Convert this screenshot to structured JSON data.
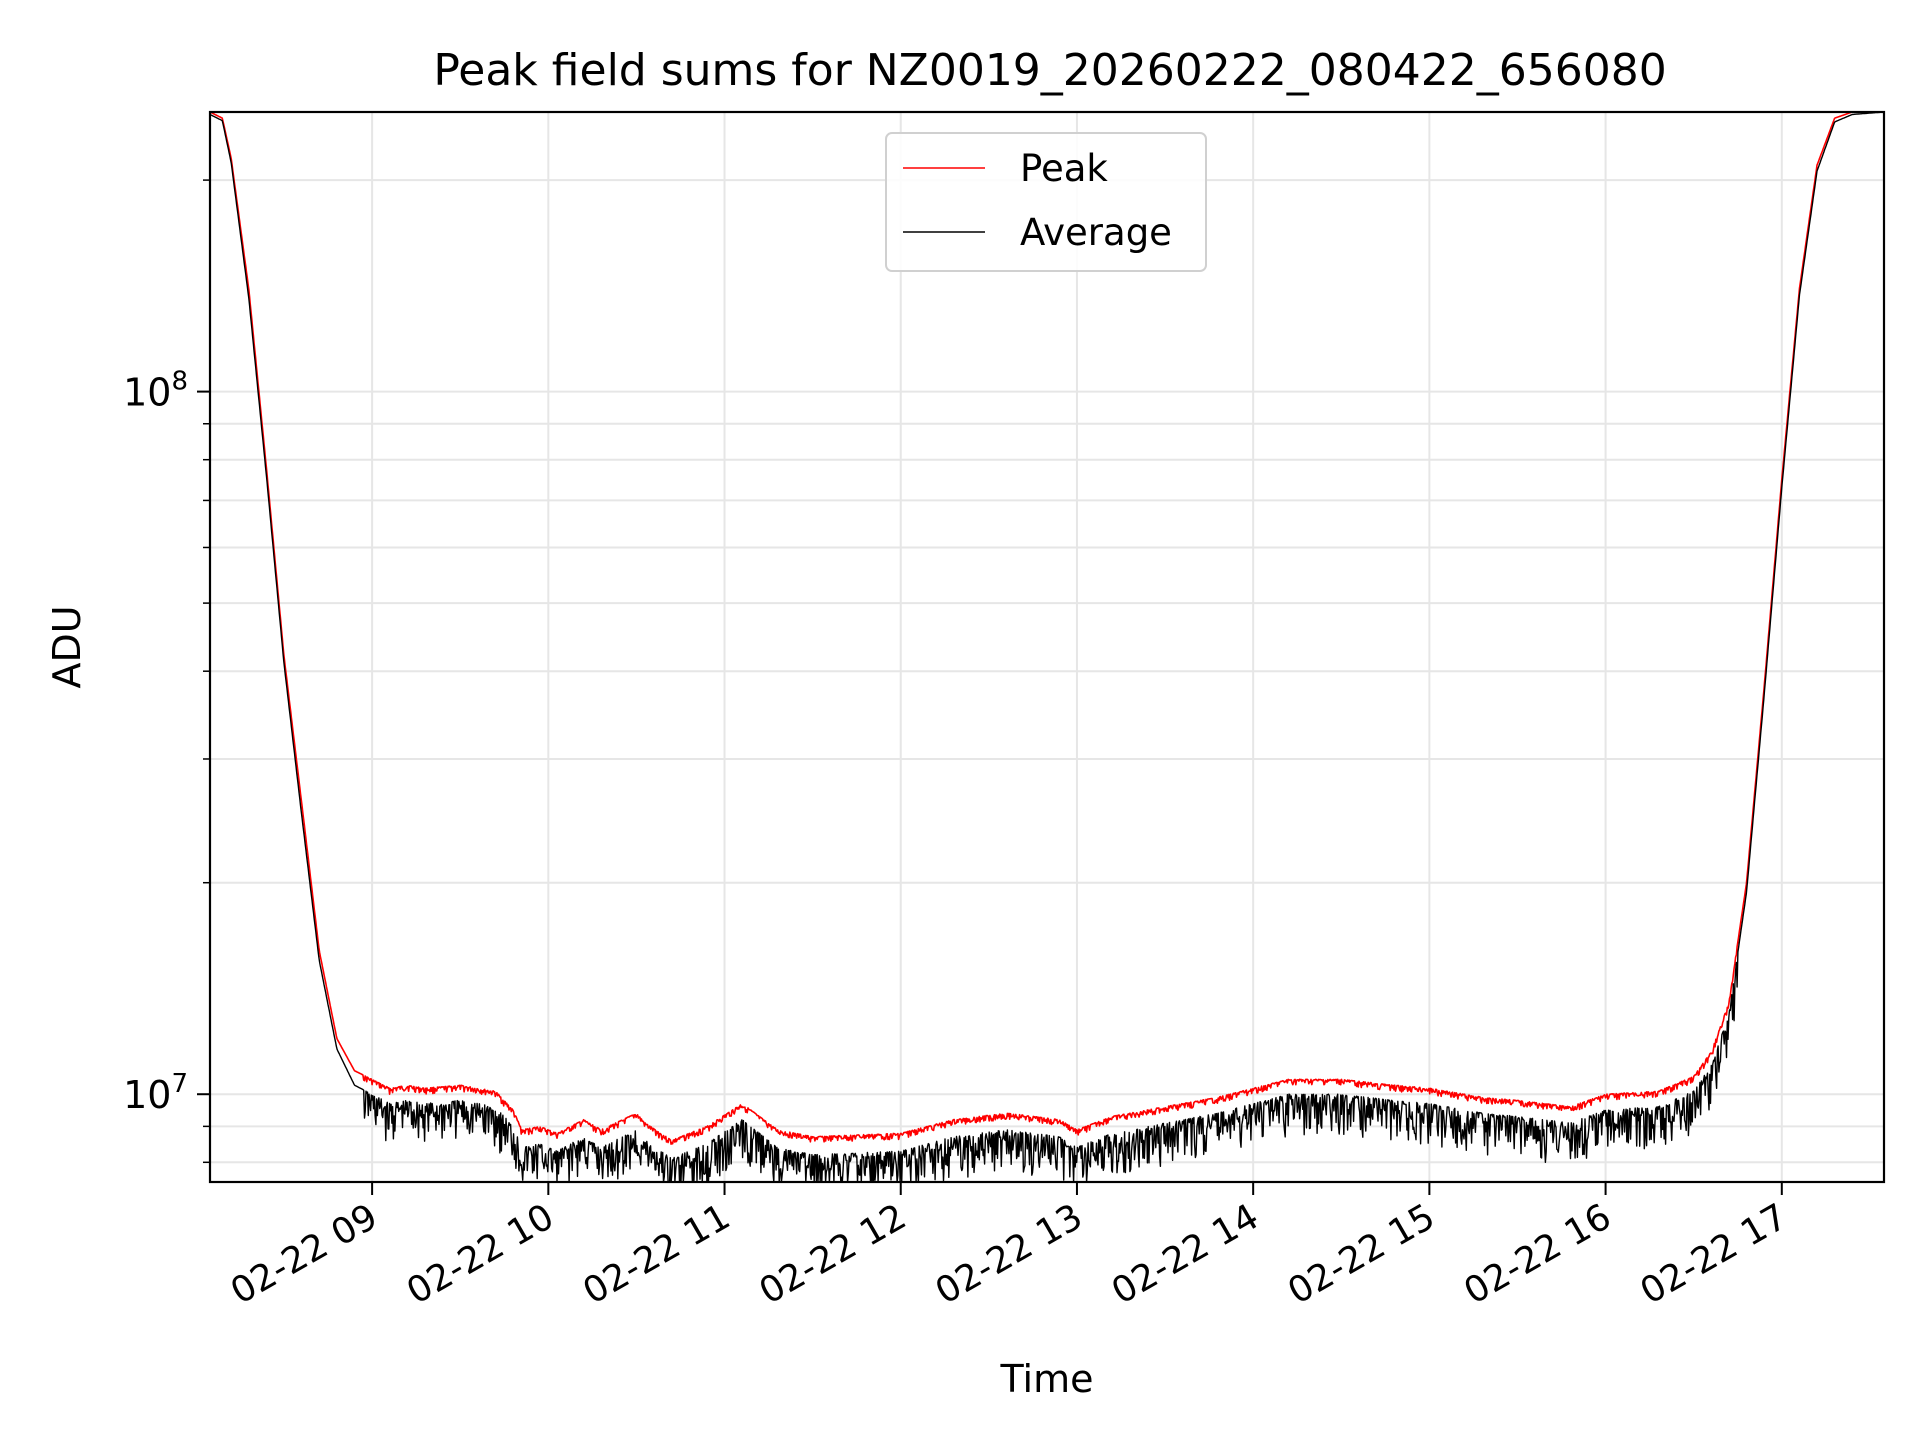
{
  "chart_data": {
    "type": "line",
    "title": "Peak field sums for NZ0019_20260222_080422_656080",
    "xlabel": "Time",
    "ylabel": "ADU",
    "yscale": "log",
    "ylim": [
      7500000,
      250000000
    ],
    "xlim_hours": [
      8.08,
      17.58
    ],
    "grid": true,
    "legend_position": "upper center",
    "x_ticks": [
      {
        "value": 9,
        "label": "02-22 09"
      },
      {
        "value": 10,
        "label": "02-22 10"
      },
      {
        "value": 11,
        "label": "02-22 11"
      },
      {
        "value": 12,
        "label": "02-22 12"
      },
      {
        "value": 13,
        "label": "02-22 13"
      },
      {
        "value": 14,
        "label": "02-22 14"
      },
      {
        "value": 15,
        "label": "02-22 15"
      },
      {
        "value": 16,
        "label": "02-22 16"
      },
      {
        "value": 17,
        "label": "02-22 17"
      }
    ],
    "y_ticks": [
      {
        "value": 10000000,
        "base": "10",
        "exp": "7"
      },
      {
        "value": 100000000,
        "base": "10",
        "exp": "8"
      }
    ],
    "legend": [
      {
        "name": "Peak",
        "color": "#ff0000"
      },
      {
        "name": "Average",
        "color": "#000000"
      }
    ],
    "series": [
      {
        "name": "Peak",
        "color": "#ff0000",
        "x_hours": [
          8.08,
          8.15,
          8.2,
          8.3,
          8.4,
          8.5,
          8.6,
          8.7,
          8.8,
          8.9,
          9.0,
          9.1,
          9.2,
          9.3,
          9.5,
          9.7,
          9.8,
          9.85,
          9.95,
          10.05,
          10.2,
          10.3,
          10.5,
          10.55,
          10.7,
          10.9,
          11.1,
          11.3,
          11.5,
          12.0,
          12.3,
          12.6,
          12.9,
          13.0,
          13.2,
          13.5,
          13.8,
          14.0,
          14.2,
          14.5,
          14.8,
          15.0,
          15.3,
          15.5,
          15.8,
          16.0,
          16.3,
          16.5,
          16.6,
          16.7,
          16.8,
          16.9,
          17.0,
          17.1,
          17.2,
          17.3,
          17.4,
          17.58
        ],
        "values": [
          250000000,
          245000000,
          215000000,
          140000000,
          78000000,
          42000000,
          26000000,
          16000000,
          12000000,
          10800000,
          10500000,
          10200000,
          10300000,
          10200000,
          10300000,
          10100000,
          9500000,
          8900000,
          9000000,
          8800000,
          9200000,
          8900000,
          9400000,
          9100000,
          8600000,
          9000000,
          9700000,
          8900000,
          8700000,
          8800000,
          9200000,
          9400000,
          9200000,
          8900000,
          9300000,
          9600000,
          9900000,
          10200000,
          10500000,
          10500000,
          10300000,
          10200000,
          9900000,
          9800000,
          9600000,
          10000000,
          10100000,
          10600000,
          11500000,
          13500000,
          20000000,
          38000000,
          75000000,
          140000000,
          210000000,
          245000000,
          250000000,
          252000000
        ]
      },
      {
        "name": "Average",
        "color": "#000000",
        "x_hours": [
          8.08,
          8.15,
          8.2,
          8.3,
          8.4,
          8.5,
          8.6,
          8.7,
          8.8,
          8.9,
          9.0,
          9.1,
          9.2,
          9.3,
          9.5,
          9.7,
          9.8,
          9.85,
          9.95,
          10.05,
          10.2,
          10.3,
          10.5,
          10.55,
          10.7,
          10.9,
          11.1,
          11.3,
          11.5,
          12.0,
          12.3,
          12.6,
          12.9,
          13.0,
          13.2,
          13.5,
          13.8,
          14.0,
          14.2,
          14.5,
          14.8,
          15.0,
          15.3,
          15.5,
          15.8,
          16.0,
          16.3,
          16.5,
          16.6,
          16.7,
          16.8,
          16.9,
          17.0,
          17.1,
          17.2,
          17.3,
          17.4,
          17.58
        ],
        "values": [
          248000000,
          243000000,
          212000000,
          136000000,
          76000000,
          41000000,
          25000000,
          15500000,
          11600000,
          10300000,
          10000000,
          9700000,
          9800000,
          9700000,
          9800000,
          9600000,
          9000000,
          8400000,
          8500000,
          8300000,
          8700000,
          8400000,
          8900000,
          8600000,
          8100000,
          8500000,
          9200000,
          8400000,
          8200000,
          8300000,
          8700000,
          8900000,
          8700000,
          8400000,
          8800000,
          9100000,
          9400000,
          9700000,
          10000000,
          10000000,
          9800000,
          9700000,
          9400000,
          9300000,
          9100000,
          9500000,
          9600000,
          10100000,
          11000000,
          13000000,
          19400000,
          37000000,
          73000000,
          137000000,
          206000000,
          242000000,
          248000000,
          250000000
        ]
      }
    ]
  }
}
